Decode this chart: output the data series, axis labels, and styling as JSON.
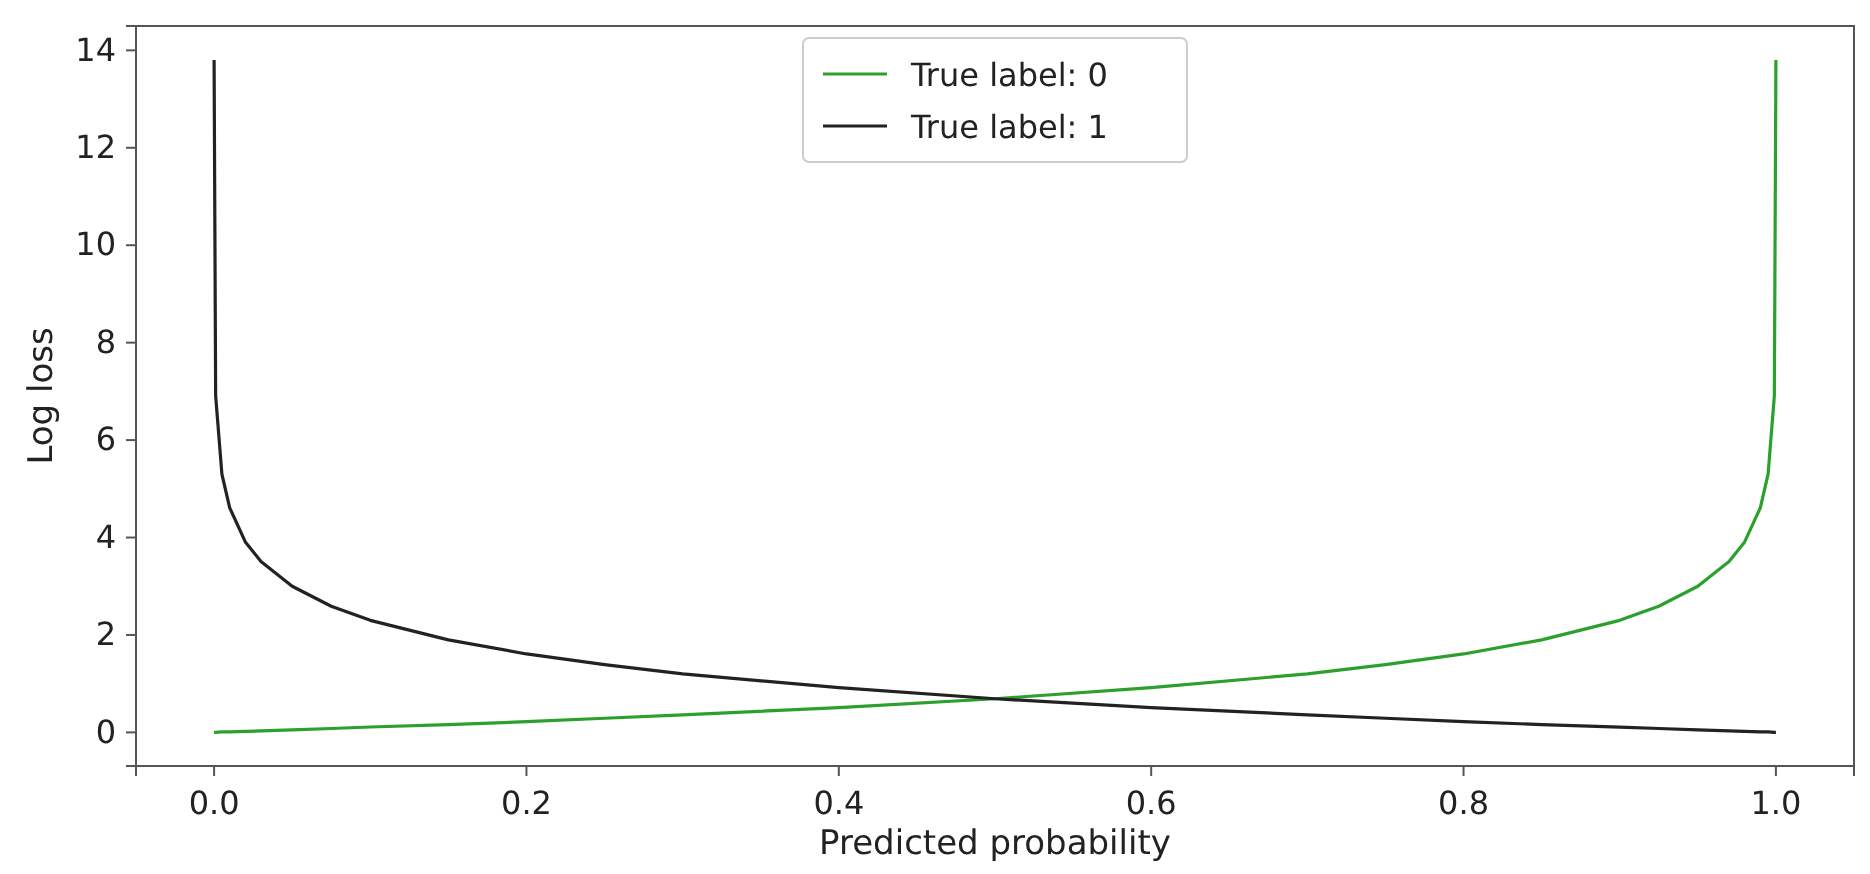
{
  "chart_data": {
    "type": "line",
    "xlabel": "Predicted probability",
    "ylabel": "Log loss",
    "x": [
      0,
      0.001,
      0.005,
      0.01,
      0.02,
      0.03,
      0.05,
      0.075,
      0.1,
      0.15,
      0.2,
      0.25,
      0.3,
      0.4,
      0.5,
      0.6,
      0.7,
      0.75,
      0.8,
      0.85,
      0.9,
      0.925,
      0.95,
      0.97,
      0.98,
      0.99,
      0.995,
      0.999,
      1.0
    ],
    "series": [
      {
        "name": "True label: 0",
        "color": "#2ca02c",
        "values": [
          0.0,
          0.0,
          0.01,
          0.01,
          0.02,
          0.03,
          0.05,
          0.08,
          0.11,
          0.16,
          0.22,
          0.29,
          0.36,
          0.51,
          0.69,
          0.92,
          1.2,
          1.39,
          1.61,
          1.9,
          2.3,
          2.59,
          3.0,
          3.51,
          3.91,
          4.61,
          5.3,
          6.91,
          13.8
        ]
      },
      {
        "name": "True label: 1",
        "color": "#222222",
        "values": [
          13.8,
          6.91,
          5.3,
          4.61,
          3.91,
          3.51,
          3.0,
          2.59,
          2.3,
          1.9,
          1.61,
          1.39,
          1.2,
          0.92,
          0.69,
          0.51,
          0.36,
          0.29,
          0.22,
          0.16,
          0.11,
          0.08,
          0.05,
          0.03,
          0.02,
          0.01,
          0.01,
          0.0,
          0.0
        ]
      }
    ],
    "xlim": [
      -0.05,
      1.05
    ],
    "ylim": [
      -0.69,
      14.5
    ],
    "xticks": [
      {
        "value": 0,
        "label": "0.0"
      },
      {
        "value": 0.2,
        "label": "0.2"
      },
      {
        "value": 0.4,
        "label": "0.4"
      },
      {
        "value": 0.6,
        "label": "0.6"
      },
      {
        "value": 0.8,
        "label": "0.8"
      },
      {
        "value": 1,
        "label": "1.0"
      }
    ],
    "yticks": [
      0,
      2,
      4,
      6,
      8,
      10,
      12,
      14
    ],
    "legend": "top",
    "grid": false,
    "marker": "none",
    "line_style": "solid"
  }
}
